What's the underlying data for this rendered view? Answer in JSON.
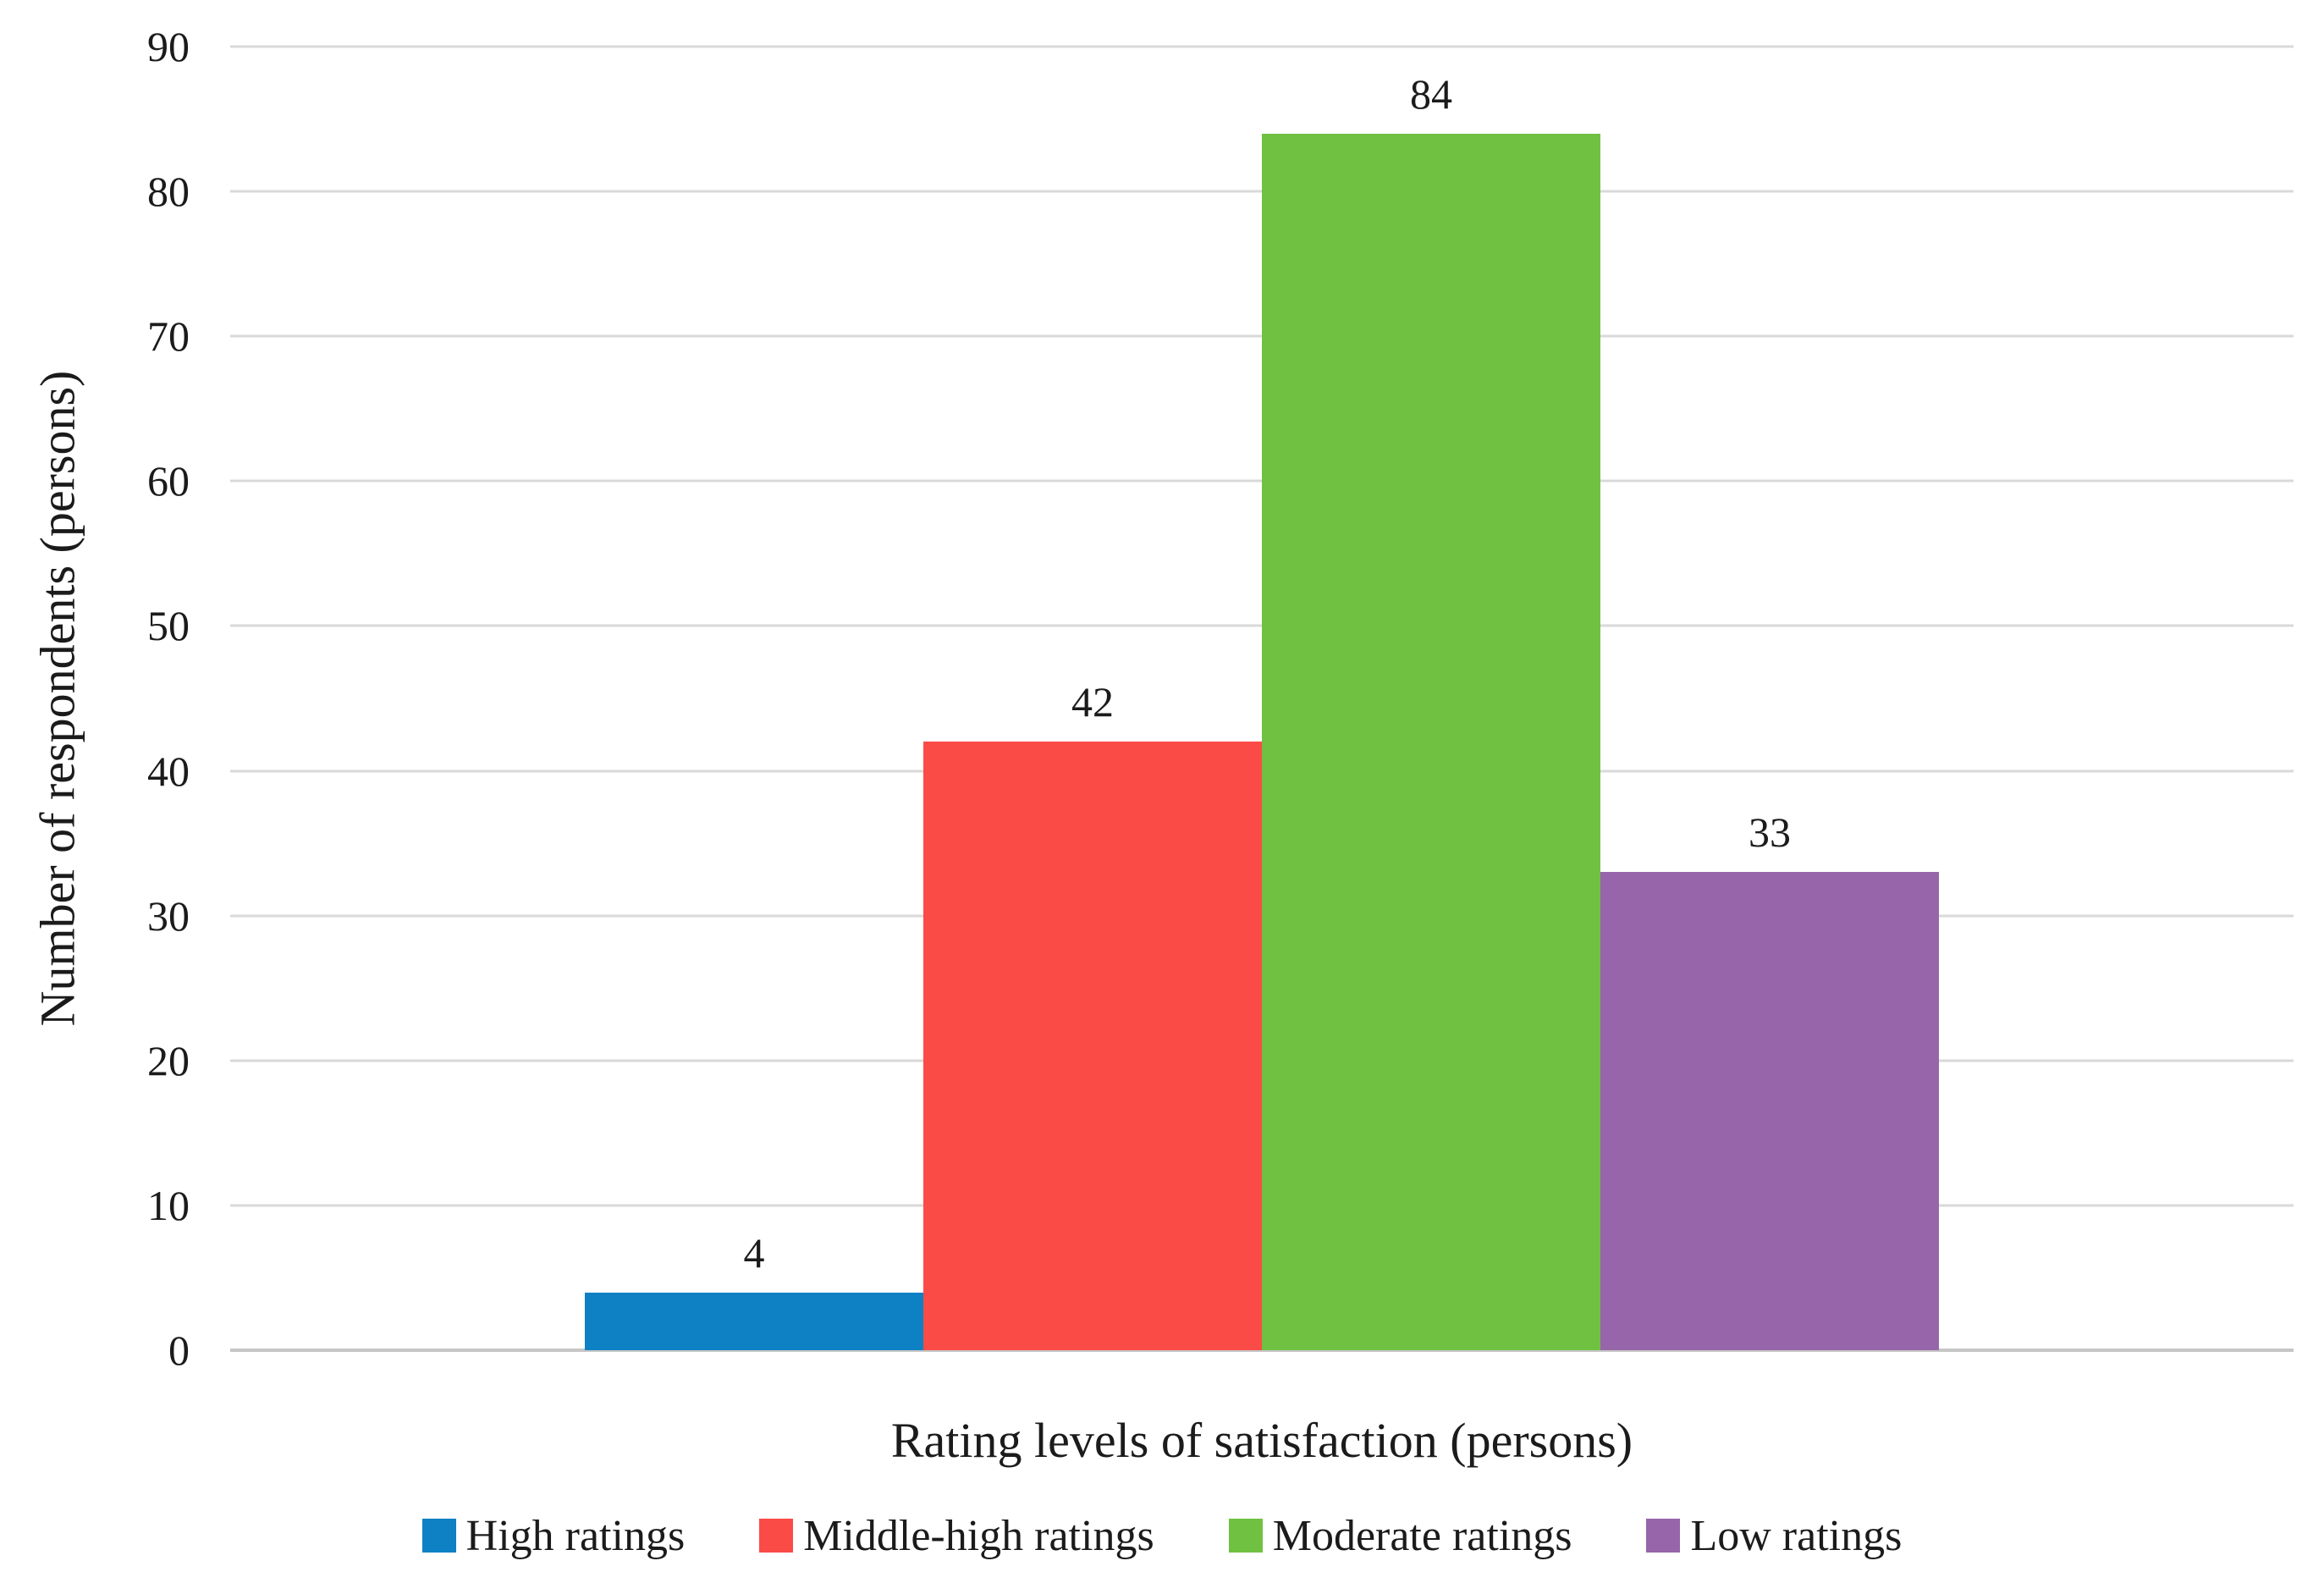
{
  "chart_data": {
    "type": "bar",
    "title": "",
    "xlabel": "Rating levels of satisfaction (persons)",
    "ylabel": "Number of respondents (persons)",
    "ylim": [
      0,
      90
    ],
    "yticks": [
      0,
      10,
      20,
      30,
      40,
      50,
      60,
      70,
      80,
      90
    ],
    "grid": true,
    "legend_position": "bottom",
    "categories": [
      "Rating levels of satisfaction"
    ],
    "series": [
      {
        "name": "High ratings",
        "value": 4,
        "color": "#0e81c4"
      },
      {
        "name": "Middle-high ratings",
        "value": 42,
        "color": "#fb4b47"
      },
      {
        "name": "Moderate ratings",
        "value": 84,
        "color": "#70c142"
      },
      {
        "name": "Low ratings",
        "value": 33,
        "color": "#9765aa"
      }
    ],
    "value_labels_shown": true
  },
  "colors": {
    "gridline": "#d9d9d9",
    "baseline": "#c6c6c6",
    "text": "#1b1b1b",
    "background": "#ffffff"
  }
}
